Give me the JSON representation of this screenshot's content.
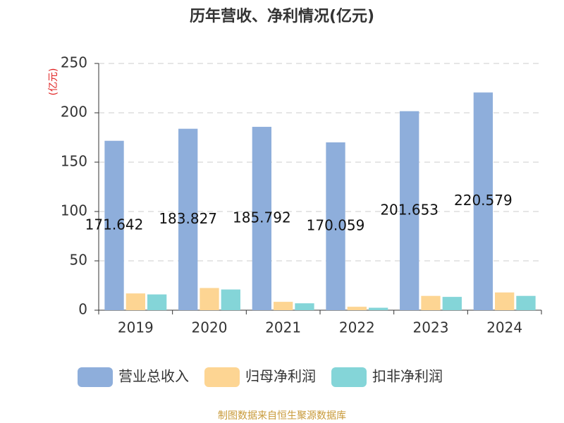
{
  "chart_data": {
    "type": "bar",
    "title": "历年营收、净利情况(亿元)",
    "y_label": "(亿元)",
    "footer": "制图数据来自恒生聚源数据库",
    "categories": [
      "2019",
      "2020",
      "2021",
      "2022",
      "2023",
      "2024"
    ],
    "series": [
      {
        "name": "营业总收入",
        "color": "#8eaedb",
        "values": [
          171.642,
          183.827,
          185.792,
          170.059,
          201.653,
          220.579
        ],
        "show_labels": true
      },
      {
        "name": "归母净利润",
        "color": "#fdd593",
        "values": [
          17,
          22.5,
          8.5,
          3.5,
          14.5,
          18
        ]
      },
      {
        "name": "扣非净利润",
        "color": "#84d5d8",
        "values": [
          16,
          21,
          7,
          2.5,
          13.5,
          14.5
        ]
      }
    ],
    "ylim": [
      0,
      250
    ],
    "yticks": [
      0,
      50,
      100,
      150,
      200,
      250
    ],
    "grid": true
  }
}
